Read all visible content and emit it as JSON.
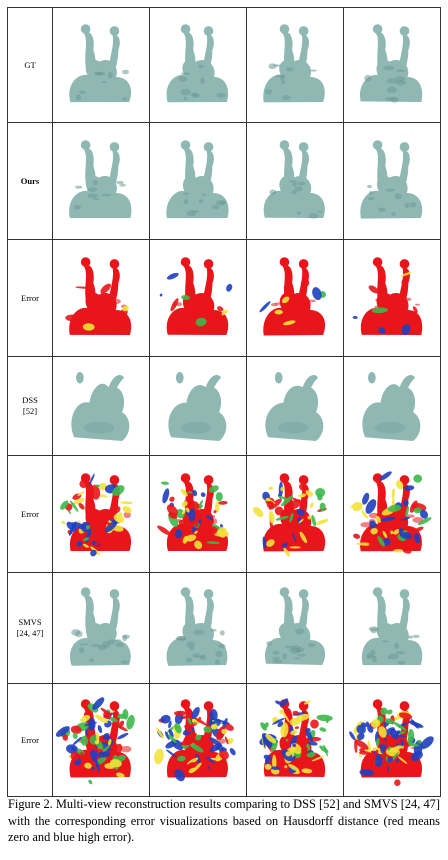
{
  "figure": {
    "rows": [
      {
        "label": "GT",
        "type": "mesh",
        "bold": false,
        "height": 115
      },
      {
        "label": "Ours",
        "type": "mesh",
        "bold": true,
        "height": 117
      },
      {
        "label": "Error",
        "type": "error-red",
        "bold": false,
        "height": 117
      },
      {
        "label": "DSS\n[52]",
        "type": "blob",
        "bold": false,
        "height": 99
      },
      {
        "label": "Error",
        "type": "error-heat",
        "bold": false,
        "height": 117
      },
      {
        "label": "SMVS\n[24, 47]",
        "type": "mesh-rough",
        "bold": false,
        "height": 111
      },
      {
        "label": "Error",
        "type": "error-heat-dense",
        "bold": false,
        "height": 113
      }
    ],
    "views": 4,
    "colors": {
      "mesh": "#8fb8b3",
      "mesh_shadow": "#6e9995",
      "error_red": "#e8161b",
      "error_blue": "#1f3fbf",
      "error_green": "#3db84a",
      "error_yellow": "#f2e23a"
    }
  },
  "caption": {
    "text": "Figure 2. Multi-view reconstruction results comparing to DSS [52] and SMVS [24, 47] with the corresponding error visualizations based on Hausdorff distance (red means zero and blue high error)."
  }
}
